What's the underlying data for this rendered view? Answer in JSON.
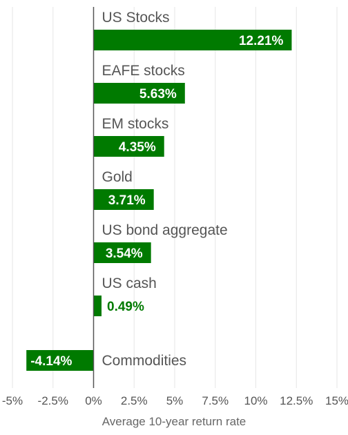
{
  "chart_data": {
    "type": "bar",
    "orientation": "horizontal",
    "categories": [
      "US Stocks",
      "EAFE stocks",
      "EM stocks",
      "Gold",
      "US bond aggregate",
      "US cash",
      "Commodities"
    ],
    "values": [
      12.21,
      5.63,
      4.35,
      3.71,
      3.54,
      0.49,
      -4.14
    ],
    "value_labels": [
      "12.21%",
      "5.63%",
      "4.35%",
      "3.71%",
      "3.54%",
      "0.49%",
      "-4.14%"
    ],
    "xlabel": "Average 10-year return rate",
    "xlim": [
      -5,
      15
    ],
    "x_ticks": [
      -5,
      -2.5,
      0,
      2.5,
      5,
      7.5,
      10,
      12.5,
      15
    ],
    "x_tick_labels": [
      "-5%",
      "-2.5%",
      "0%",
      "2.5%",
      "5%",
      "7.5%",
      "10%",
      "12.5%",
      "15%"
    ],
    "grid": true,
    "colors": {
      "bar": "#007a00",
      "outside_label": "#007a00",
      "inside_label": "#ffffff",
      "grid": "#e6e6e6",
      "zero_line": "#555555"
    }
  }
}
